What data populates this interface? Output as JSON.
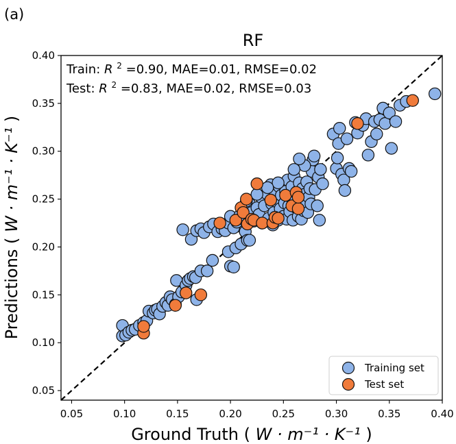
{
  "panel_label": "(a)",
  "chart_data": {
    "type": "scatter",
    "title": "RF",
    "xlabel": {
      "prefix": "Ground Truth (",
      "unit": "W · m⁻¹ · K⁻¹",
      "suffix": ")"
    },
    "ylabel": {
      "prefix": "Predictions (",
      "unit": "W · m⁻¹ · K⁻¹",
      "suffix": ")"
    },
    "xlim": [
      0.04,
      0.4
    ],
    "ylim": [
      0.04,
      0.4
    ],
    "xticks": [
      "0.05",
      "0.10",
      "0.15",
      "0.20",
      "0.25",
      "0.30",
      "0.35",
      "0.40"
    ],
    "yticks": [
      "0.05",
      "0.10",
      "0.15",
      "0.20",
      "0.25",
      "0.30",
      "0.35",
      "0.40"
    ],
    "grid": false,
    "legend_position": "bottom-right",
    "reference_line": {
      "style": "dashed",
      "color": "#000000"
    },
    "annotations": {
      "train": {
        "label": "Train: ",
        "r2_symbol": "R",
        "r2_sup": "2",
        "r2_value": "=0.90,",
        "rest": " MAE=0.01, RMSE=0.02"
      },
      "test": {
        "label": "Test: ",
        "r2_symbol": "R",
        "r2_sup": "2",
        "r2_value": "=0.83,",
        "rest": " MAE=0.02, RMSE=0.03"
      }
    },
    "series": [
      {
        "name": "Training set",
        "color": "#8eb3e8",
        "edge": "#111111",
        "points": [
          [
            0.098,
            0.107
          ],
          [
            0.098,
            0.118
          ],
          [
            0.101,
            0.108
          ],
          [
            0.104,
            0.111
          ],
          [
            0.107,
            0.113
          ],
          [
            0.11,
            0.114
          ],
          [
            0.114,
            0.118
          ],
          [
            0.118,
            0.121
          ],
          [
            0.121,
            0.123
          ],
          [
            0.123,
            0.133
          ],
          [
            0.127,
            0.131
          ],
          [
            0.129,
            0.134
          ],
          [
            0.131,
            0.135
          ],
          [
            0.133,
            0.13
          ],
          [
            0.136,
            0.138
          ],
          [
            0.139,
            0.142
          ],
          [
            0.141,
            0.139
          ],
          [
            0.143,
            0.148
          ],
          [
            0.145,
            0.145
          ],
          [
            0.148,
            0.14
          ],
          [
            0.149,
            0.165
          ],
          [
            0.151,
            0.148
          ],
          [
            0.154,
            0.153
          ],
          [
            0.158,
            0.16
          ],
          [
            0.16,
            0.165
          ],
          [
            0.162,
            0.167
          ],
          [
            0.165,
            0.169
          ],
          [
            0.167,
            0.168
          ],
          [
            0.168,
            0.145
          ],
          [
            0.172,
            0.175
          ],
          [
            0.178,
            0.175
          ],
          [
            0.183,
            0.186
          ],
          [
            0.198,
            0.195
          ],
          [
            0.2,
            0.18
          ],
          [
            0.203,
            0.179
          ],
          [
            0.205,
            0.199
          ],
          [
            0.21,
            0.203
          ],
          [
            0.212,
            0.22
          ],
          [
            0.214,
            0.216
          ],
          [
            0.216,
            0.207
          ],
          [
            0.218,
            0.207
          ],
          [
            0.155,
            0.218
          ],
          [
            0.163,
            0.208
          ],
          [
            0.168,
            0.217
          ],
          [
            0.172,
            0.219
          ],
          [
            0.175,
            0.215
          ],
          [
            0.18,
            0.221
          ],
          [
            0.184,
            0.224
          ],
          [
            0.188,
            0.216
          ],
          [
            0.192,
            0.219
          ],
          [
            0.195,
            0.217
          ],
          [
            0.198,
            0.225
          ],
          [
            0.2,
            0.232
          ],
          [
            0.203,
            0.22
          ],
          [
            0.206,
            0.226
          ],
          [
            0.209,
            0.233
          ],
          [
            0.212,
            0.229
          ],
          [
            0.214,
            0.239
          ],
          [
            0.216,
            0.224
          ],
          [
            0.218,
            0.245
          ],
          [
            0.22,
            0.236
          ],
          [
            0.222,
            0.227
          ],
          [
            0.225,
            0.241
          ],
          [
            0.227,
            0.234
          ],
          [
            0.229,
            0.252
          ],
          [
            0.23,
            0.225
          ],
          [
            0.232,
            0.243
          ],
          [
            0.234,
            0.256
          ],
          [
            0.236,
            0.23
          ],
          [
            0.238,
            0.265
          ],
          [
            0.239,
            0.245
          ],
          [
            0.24,
            0.223
          ],
          [
            0.241,
            0.236
          ],
          [
            0.242,
            0.258
          ],
          [
            0.244,
            0.247
          ],
          [
            0.245,
            0.228
          ],
          [
            0.246,
            0.263
          ],
          [
            0.247,
            0.24
          ],
          [
            0.248,
            0.254
          ],
          [
            0.25,
            0.232
          ],
          [
            0.251,
            0.246
          ],
          [
            0.252,
            0.258
          ],
          [
            0.253,
            0.229
          ],
          [
            0.254,
            0.27
          ],
          [
            0.255,
            0.243
          ],
          [
            0.256,
            0.237
          ],
          [
            0.257,
            0.252
          ],
          [
            0.258,
            0.263
          ],
          [
            0.259,
            0.228
          ],
          [
            0.26,
            0.274
          ],
          [
            0.261,
            0.25
          ],
          [
            0.262,
            0.241
          ],
          [
            0.263,
            0.258
          ],
          [
            0.264,
            0.232
          ],
          [
            0.265,
            0.267
          ],
          [
            0.266,
            0.246
          ],
          [
            0.267,
            0.229
          ],
          [
            0.268,
            0.261
          ],
          [
            0.269,
            0.238
          ],
          [
            0.27,
            0.255
          ],
          [
            0.271,
            0.247
          ],
          [
            0.272,
            0.268
          ],
          [
            0.273,
            0.236
          ],
          [
            0.274,
            0.252
          ],
          [
            0.275,
            0.261
          ],
          [
            0.276,
            0.245
          ],
          [
            0.277,
            0.279
          ],
          [
            0.278,
            0.291
          ],
          [
            0.279,
            0.295
          ],
          [
            0.28,
            0.26
          ],
          [
            0.282,
            0.243
          ],
          [
            0.283,
            0.273
          ],
          [
            0.284,
            0.228
          ],
          [
            0.285,
            0.281
          ],
          [
            0.287,
            0.266
          ],
          [
            0.297,
            0.318
          ],
          [
            0.3,
            0.282
          ],
          [
            0.301,
            0.293
          ],
          [
            0.302,
            0.308
          ],
          [
            0.303,
            0.324
          ],
          [
            0.305,
            0.276
          ],
          [
            0.307,
            0.27
          ],
          [
            0.308,
            0.259
          ],
          [
            0.31,
            0.313
          ],
          [
            0.312,
            0.282
          ],
          [
            0.314,
            0.279
          ],
          [
            0.318,
            0.33
          ],
          [
            0.32,
            0.319
          ],
          [
            0.325,
            0.327
          ],
          [
            0.328,
            0.334
          ],
          [
            0.33,
            0.296
          ],
          [
            0.333,
            0.31
          ],
          [
            0.336,
            0.331
          ],
          [
            0.338,
            0.318
          ],
          [
            0.341,
            0.333
          ],
          [
            0.344,
            0.345
          ],
          [
            0.346,
            0.329
          ],
          [
            0.35,
            0.34
          ],
          [
            0.352,
            0.303
          ],
          [
            0.356,
            0.331
          ],
          [
            0.36,
            0.348
          ],
          [
            0.366,
            0.352
          ],
          [
            0.393,
            0.36
          ],
          [
            0.27,
            0.285
          ],
          [
            0.265,
            0.292
          ],
          [
            0.26,
            0.281
          ],
          [
            0.245,
            0.267
          ],
          [
            0.235,
            0.262
          ],
          [
            0.225,
            0.255
          ],
          [
            0.215,
            0.248
          ]
        ]
      },
      {
        "name": "Test set",
        "color": "#f07b3b",
        "edge": "#111111",
        "points": [
          [
            0.118,
            0.11
          ],
          [
            0.118,
            0.117
          ],
          [
            0.148,
            0.139
          ],
          [
            0.158,
            0.152
          ],
          [
            0.172,
            0.15
          ],
          [
            0.19,
            0.225
          ],
          [
            0.205,
            0.228
          ],
          [
            0.21,
            0.241
          ],
          [
            0.212,
            0.236
          ],
          [
            0.215,
            0.25
          ],
          [
            0.216,
            0.224
          ],
          [
            0.22,
            0.229
          ],
          [
            0.222,
            0.228
          ],
          [
            0.225,
            0.266
          ],
          [
            0.23,
            0.225
          ],
          [
            0.238,
            0.249
          ],
          [
            0.24,
            0.225
          ],
          [
            0.242,
            0.231
          ],
          [
            0.245,
            0.23
          ],
          [
            0.252,
            0.254
          ],
          [
            0.258,
            0.243
          ],
          [
            0.262,
            0.257
          ],
          [
            0.264,
            0.24
          ],
          [
            0.264,
            0.252
          ],
          [
            0.32,
            0.329
          ],
          [
            0.372,
            0.353
          ]
        ]
      }
    ]
  }
}
